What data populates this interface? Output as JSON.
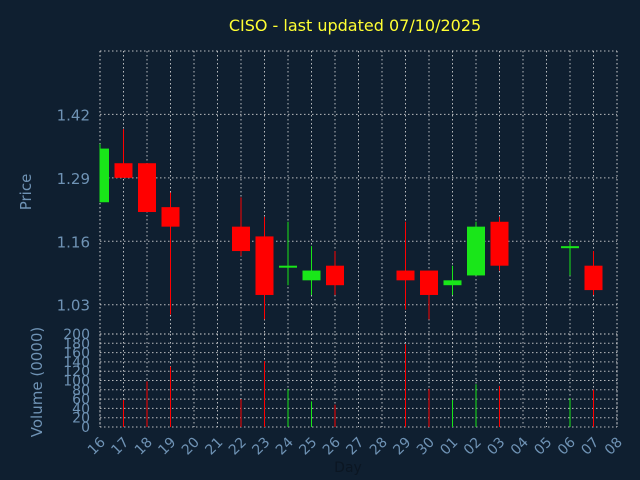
{
  "title": "CISO - last updated 07/10/2025",
  "colors": {
    "background": "#0f1f30",
    "up": "#19e619",
    "down": "#ff0000",
    "grid": "#d8d8d8",
    "tick_text": "#6f93b5",
    "title": "#ffff33"
  },
  "chart_data": [
    {
      "type": "candlestick",
      "title": "CISO - last updated 07/10/2025",
      "ylabel": "Price",
      "xlabel": "Day",
      "ylim": [
        0.97,
        1.55
      ],
      "y_ticks": [
        "1.42",
        "1.29",
        "1.16",
        "1.03"
      ],
      "x_ticks": [
        "16",
        "17",
        "18",
        "19",
        "20",
        "21",
        "22",
        "23",
        "24",
        "25",
        "26",
        "27",
        "28",
        "29",
        "30",
        "01",
        "02",
        "03",
        "04",
        "05",
        "06",
        "07",
        "08"
      ],
      "grid": true,
      "candles": [
        {
          "day": "16",
          "open": 1.24,
          "high": 1.36,
          "low": 1.24,
          "close": 1.35
        },
        {
          "day": "17",
          "open": 1.32,
          "high": 1.39,
          "low": 1.29,
          "close": 1.29
        },
        {
          "day": "18",
          "open": 1.32,
          "high": 1.32,
          "low": 1.22,
          "close": 1.22
        },
        {
          "day": "19",
          "open": 1.23,
          "high": 1.26,
          "low": 1.01,
          "close": 1.19
        },
        {
          "day": "22",
          "open": 1.19,
          "high": 1.25,
          "low": 1.13,
          "close": 1.14
        },
        {
          "day": "23",
          "open": 1.17,
          "high": 1.21,
          "low": 1.0,
          "close": 1.05
        },
        {
          "day": "24",
          "open": 1.11,
          "high": 1.2,
          "low": 1.07,
          "close": 1.11
        },
        {
          "day": "25",
          "open": 1.08,
          "high": 1.15,
          "low": 1.05,
          "close": 1.1
        },
        {
          "day": "26",
          "open": 1.11,
          "high": 1.14,
          "low": 1.05,
          "close": 1.07
        },
        {
          "day": "29",
          "open": 1.1,
          "high": 1.2,
          "low": 1.02,
          "close": 1.08
        },
        {
          "day": "30",
          "open": 1.1,
          "high": 1.1,
          "low": 1.0,
          "close": 1.05
        },
        {
          "day": "01",
          "open": 1.07,
          "high": 1.11,
          "low": 1.05,
          "close": 1.08
        },
        {
          "day": "02",
          "open": 1.09,
          "high": 1.2,
          "low": 1.09,
          "close": 1.19
        },
        {
          "day": "03",
          "open": 1.2,
          "high": 1.21,
          "low": 1.1,
          "close": 1.11
        },
        {
          "day": "06",
          "open": 1.15,
          "high": 1.16,
          "low": 1.09,
          "close": 1.15
        },
        {
          "day": "07",
          "open": 1.11,
          "high": 1.14,
          "low": 1.05,
          "close": 1.06
        }
      ]
    },
    {
      "type": "bar",
      "ylabel": "Volume (0000)",
      "xlabel": "Day",
      "ylim": [
        0,
        200
      ],
      "y_ticks": [
        "0",
        "20",
        "40",
        "60",
        "80",
        "100",
        "120",
        "140",
        "160",
        "180",
        "200"
      ],
      "volumes": [
        {
          "day": "17",
          "value": 58,
          "direction": "down"
        },
        {
          "day": "18",
          "value": 98,
          "direction": "down"
        },
        {
          "day": "19",
          "value": 130,
          "direction": "down"
        },
        {
          "day": "22",
          "value": 60,
          "direction": "down"
        },
        {
          "day": "23",
          "value": 142,
          "direction": "down"
        },
        {
          "day": "24",
          "value": 82,
          "direction": "up"
        },
        {
          "day": "25",
          "value": 55,
          "direction": "up"
        },
        {
          "day": "26",
          "value": 48,
          "direction": "down"
        },
        {
          "day": "29",
          "value": 178,
          "direction": "down"
        },
        {
          "day": "30",
          "value": 82,
          "direction": "down"
        },
        {
          "day": "01",
          "value": 58,
          "direction": "up"
        },
        {
          "day": "02",
          "value": 92,
          "direction": "up"
        },
        {
          "day": "03",
          "value": 88,
          "direction": "down"
        },
        {
          "day": "06",
          "value": 62,
          "direction": "up"
        },
        {
          "day": "07",
          "value": 80,
          "direction": "down"
        }
      ]
    }
  ]
}
